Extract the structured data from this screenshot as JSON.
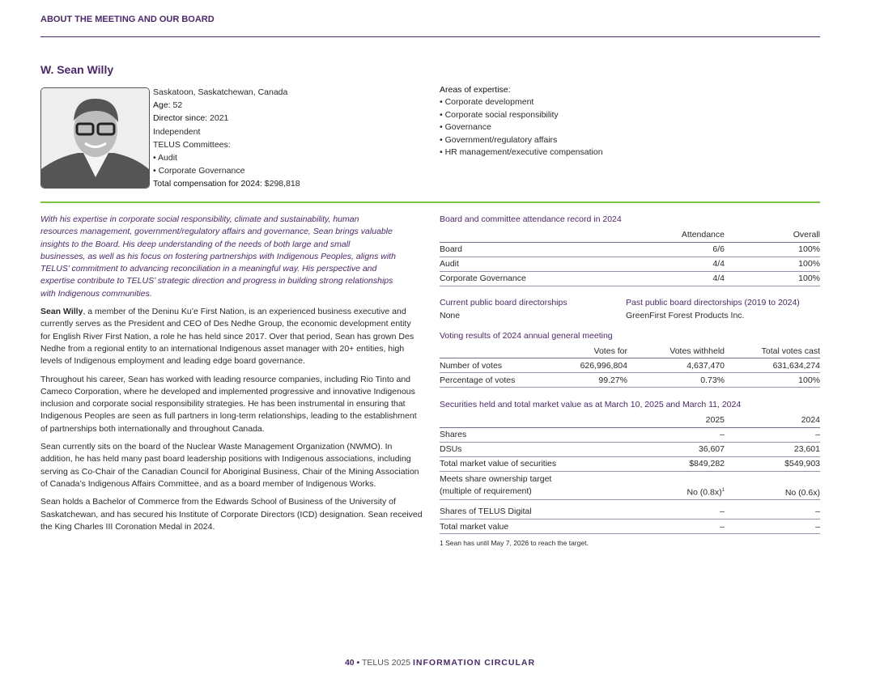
{
  "header": {
    "section_title": "ABOUT THE MEETING AND OUR BOARD"
  },
  "director": {
    "name": "W. Sean Willy",
    "location": "Saskatoon, Saskatchewan, Canada",
    "age_label": "Age:",
    "age": "52",
    "director_since_label": "Director since:",
    "director_since": "2021",
    "status": "Independent",
    "committees_label": "TELUS Committees:",
    "committees": [
      "Audit",
      "Corporate Governance"
    ],
    "compensation_label": "Total compensation for 2024:",
    "compensation": "$298,818"
  },
  "expertise": {
    "title": "Areas of expertise:",
    "items": [
      "Corporate development",
      "Corporate social responsibility",
      "Governance",
      "Government/regulatory affairs",
      "HR management/executive compensation"
    ]
  },
  "bio": {
    "intro": "With his expertise in corporate social responsibility, climate and sustainability, human resources management, government/regulatory affairs and governance, Sean brings valuable insights to the Board. His deep understanding of the needs of both large and small businesses, as well as his focus on fostering partnerships with Indigenous Peoples, aligns with TELUS’ commitment to advancing reconciliation in a meaningful way. His perspective and expertise contribute to TELUS’ strategic direction and progress in building strong relationships with Indigenous communities.",
    "p1_lead": "Sean Willy",
    "p1": ", a member of the Deninu Ku’e First Nation, is an experienced business executive and currently serves as the President and CEO of Des Nedhe Group, the economic development entity for English River First Nation, a role he has held since 2017. Over that period, Sean has grown Des Nedhe from a regional entity to an international Indigenous asset manager with 20+ entities, high levels of Indigenous employment and leading edge board governance.",
    "p2": "Throughout his career, Sean has worked with leading resource companies, including Rio Tinto and Cameco Corporation, where he developed and implemented progressive and innovative Indigenous inclusion and corporate social responsibility strategies. He has been instrumental in ensuring that Indigenous Peoples are seen as full partners in long-term relationships, leading to the establishment of partnerships both internationally and throughout Canada.",
    "p3": "Sean currently sits on the board of the Nuclear Waste Management Organization (NWMO). In addition, he has held many past board leadership positions with Indigenous associations, including serving as Co-Chair of the Canadian Council for Aboriginal Business, Chair of the Mining Association of Canada’s Indigenous Affairs Committee, and as a board member of Indigenous Works.",
    "p4": "Sean holds a Bachelor of Commerce from the Edwards School of Business of the University of Saskatchewan, and has secured his Institute of Corporate Directors (ICD) designation. Sean received the King Charles III Coronation Medal in 2024."
  },
  "attendance": {
    "title": "Board and committee attendance record in 2024",
    "headers": [
      "",
      "Attendance",
      "Overall"
    ],
    "rows": [
      [
        "Board",
        "6/6",
        "100%"
      ],
      [
        "Audit",
        "4/4",
        "100%"
      ],
      [
        "Corporate Governance",
        "4/4",
        "100%"
      ]
    ]
  },
  "directorships": {
    "current_title": "Current public board directorships",
    "current": "None",
    "past_title": "Past public board directorships (2019 to 2024)",
    "past": "GreenFirst Forest Products Inc."
  },
  "voting": {
    "title": "Voting results of 2024 annual general meeting",
    "headers": [
      "",
      "Votes for",
      "Votes withheld",
      "Total votes cast"
    ],
    "rows": [
      [
        "Number of votes",
        "626,996,804",
        "4,637,470",
        "631,634,274"
      ],
      [
        "Percentage of votes",
        "99.27%",
        "0.73%",
        "100%"
      ]
    ]
  },
  "securities": {
    "title": "Securities held and total market value as at March 10, 2025 and March 11, 2024",
    "headers": [
      "",
      "2025",
      "2024"
    ],
    "rows": [
      [
        "Shares",
        "–",
        "–"
      ],
      [
        "DSUs",
        "36,607",
        "23,601"
      ],
      [
        "Total market value of securities",
        "$849,282",
        "$549,903"
      ]
    ],
    "target_label_1": "Meets share ownership target",
    "target_label_2": "(multiple of requirement)",
    "target_2025": "No (0.8x)",
    "target_2025_note": "1",
    "target_2024": "No (0.6x)",
    "digital_rows": [
      [
        "Shares of TELUS Digital",
        "–",
        "–"
      ],
      [
        "Total market value",
        "–",
        "–"
      ]
    ],
    "footnote": "1   Sean has until May 7, 2026 to reach the target."
  },
  "footer": {
    "page": "40",
    "bullet": "•",
    "doc": "TELUS 2025",
    "title": "INFORMATION CIRCULAR"
  },
  "colors": {
    "purple": "#4b286d",
    "green": "#7cc142"
  }
}
